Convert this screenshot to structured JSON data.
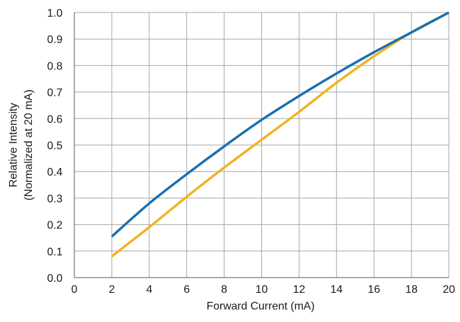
{
  "chart_data": {
    "type": "line",
    "title": "",
    "xlabel": "Forward Current (mA)",
    "ylabel_lines": [
      "Relative Intensity",
      "(Normalized at 20 mA)"
    ],
    "xlim": [
      0,
      20
    ],
    "ylim": [
      0,
      1.0
    ],
    "x_ticks": [
      0,
      2,
      4,
      6,
      8,
      10,
      12,
      14,
      16,
      18,
      20
    ],
    "x_tick_labels": [
      "0",
      "2",
      "4",
      "6",
      "8",
      "10",
      "12",
      "14",
      "16",
      "18",
      "20"
    ],
    "y_ticks": [
      0,
      0.1,
      0.2,
      0.3,
      0.4,
      0.5,
      0.6,
      0.7,
      0.8,
      0.9,
      1.0
    ],
    "y_tick_labels": [
      "0.0",
      "0.1",
      "0.2",
      "0.3",
      "0.4",
      "0.5",
      "0.6",
      "0.7",
      "0.8",
      "0.9",
      "1.0"
    ],
    "grid": true,
    "legend": "none",
    "series": [
      {
        "color": "#1a6fb0",
        "x": [
          2,
          4,
          6,
          8,
          10,
          12,
          14,
          16,
          18,
          20
        ],
        "y": [
          0.155,
          0.28,
          0.39,
          0.495,
          0.595,
          0.685,
          0.77,
          0.85,
          0.925,
          1.0
        ]
      },
      {
        "color": "#f0b323",
        "x": [
          2,
          4,
          6,
          8,
          10,
          12,
          14,
          16,
          18,
          20
        ],
        "y": [
          0.08,
          0.19,
          0.305,
          0.415,
          0.52,
          0.625,
          0.735,
          0.835,
          0.925,
          1.0
        ]
      }
    ]
  }
}
